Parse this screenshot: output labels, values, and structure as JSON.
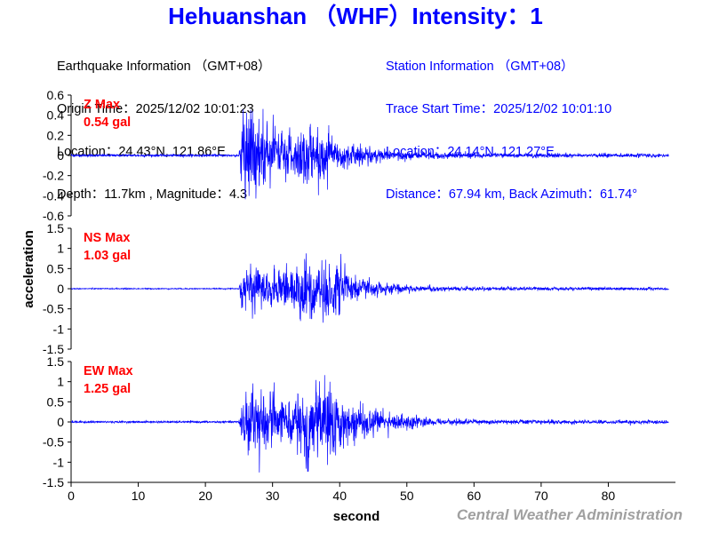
{
  "title": "Hehuanshan （WHF）Intensity：1",
  "colors": {
    "title": "#0000ff",
    "trace": "#0000ff",
    "max_label": "#ff0000",
    "station_info": "#0000ff",
    "earthquake_info": "#000000",
    "footer": "#a0a0a0",
    "axis": "#000000"
  },
  "earthquake_info": {
    "heading": "Earthquake Information （GMT+08）",
    "origin_time": "Origin Time：2025/12/02 10:01:23",
    "location": "Location：24.43°N, 121.86°E",
    "depth_magnitude": "Depth：11.7km , Magnitude：4.3"
  },
  "station_info": {
    "heading": "Station Information （GMT+08）",
    "trace_start": "Trace Start Time：2025/12/02 10:01:10",
    "location": "Location：24.14°N, 121.27°E",
    "distance": "Distance：67.94 km, Back Azimuth：61.74°"
  },
  "footer": "Central Weather Administration",
  "chart_data": {
    "type": "line",
    "xlabel": "second",
    "ylabel": "acceleration",
    "xlim": [
      0,
      90
    ],
    "x_ticks": [
      0,
      10,
      20,
      30,
      40,
      50,
      60,
      70,
      80
    ],
    "duration": 89,
    "panels": [
      {
        "name": "Z",
        "max_label": "Z Max",
        "max_value": "0.54 gal",
        "ylim": [
          -0.6,
          0.6
        ],
        "y_ticks": [
          0.6,
          0.4,
          0.2,
          0,
          -0.2,
          -0.4,
          -0.6
        ],
        "onset": 25.1,
        "envelope": [
          [
            0,
            0.01
          ],
          [
            25,
            0.01
          ],
          [
            25.4,
            0.45
          ],
          [
            27,
            0.42
          ],
          [
            29,
            0.28
          ],
          [
            31,
            0.24
          ],
          [
            33,
            0.18
          ],
          [
            35,
            0.3
          ],
          [
            36,
            0.3
          ],
          [
            38,
            0.26
          ],
          [
            40,
            0.13
          ],
          [
            45,
            0.06
          ],
          [
            52,
            0.03
          ],
          [
            65,
            0.02
          ],
          [
            89,
            0.015
          ]
        ]
      },
      {
        "name": "NS",
        "max_label": "NS Max",
        "max_value": "1.03 gal",
        "ylim": [
          -1.5,
          1.5
        ],
        "y_ticks": [
          1.5,
          1,
          0.5,
          0,
          -0.5,
          -1,
          -1.5
        ],
        "onset": 25.1,
        "envelope": [
          [
            0,
            0.01
          ],
          [
            25,
            0.01
          ],
          [
            25.4,
            0.45
          ],
          [
            27,
            0.6
          ],
          [
            29,
            0.4
          ],
          [
            32,
            0.45
          ],
          [
            35,
            0.75
          ],
          [
            37,
            0.55
          ],
          [
            39,
            0.7
          ],
          [
            41,
            0.35
          ],
          [
            45,
            0.15
          ],
          [
            52,
            0.06
          ],
          [
            62,
            0.04
          ],
          [
            89,
            0.03
          ]
        ]
      },
      {
        "name": "EW",
        "max_label": "EW Max",
        "max_value": "1.25 gal",
        "ylim": [
          -1.5,
          1.5
        ],
        "y_ticks": [
          1.5,
          1,
          0.5,
          0,
          -0.5,
          -1,
          -1.5
        ],
        "onset": 25.1,
        "envelope": [
          [
            0,
            0.02
          ],
          [
            25,
            0.02
          ],
          [
            25.4,
            0.55
          ],
          [
            27,
            0.85
          ],
          [
            29,
            0.6
          ],
          [
            31,
            0.45
          ],
          [
            33,
            0.5
          ],
          [
            35,
            1.05
          ],
          [
            37,
            0.85
          ],
          [
            39,
            0.9
          ],
          [
            41,
            0.5
          ],
          [
            44,
            0.3
          ],
          [
            47,
            0.2
          ],
          [
            50,
            0.18
          ],
          [
            53,
            0.08
          ],
          [
            60,
            0.05
          ],
          [
            89,
            0.04
          ]
        ]
      }
    ]
  }
}
